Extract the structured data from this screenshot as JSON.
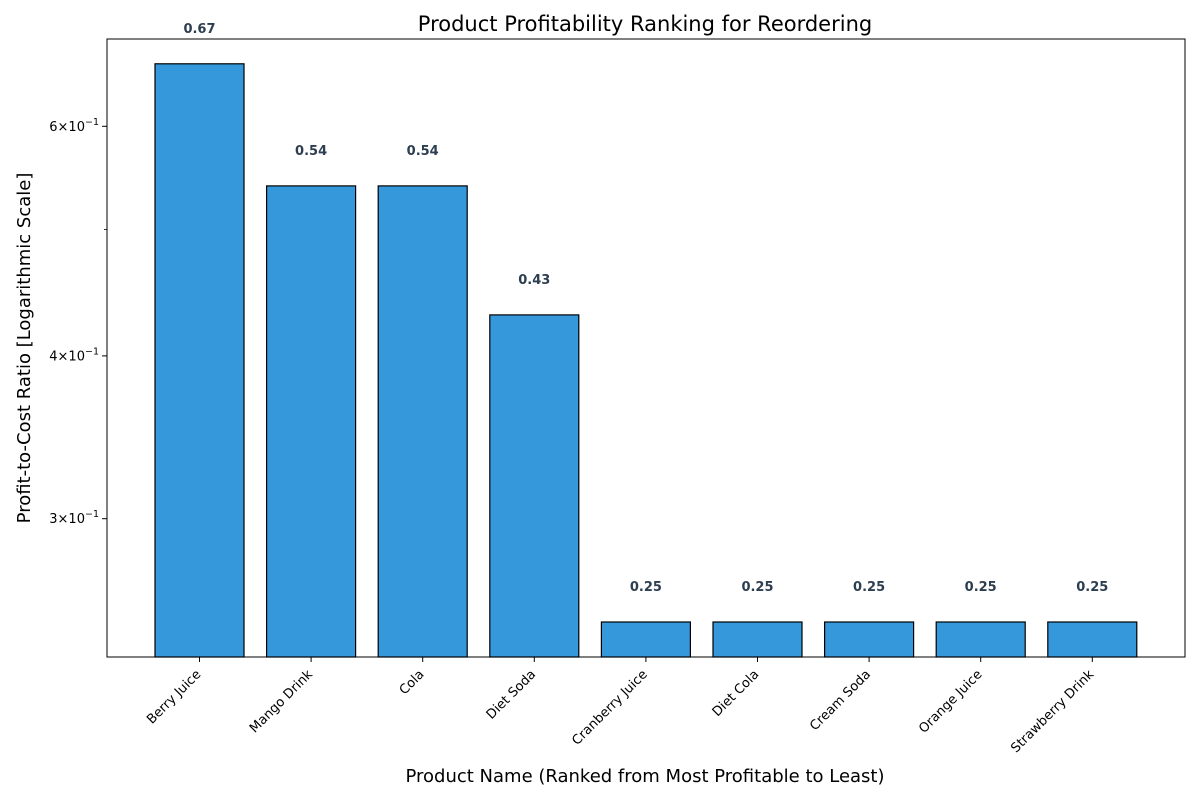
{
  "chart_data": {
    "type": "bar",
    "title": "Product Profitability Ranking for Reordering",
    "xlabel": "Product Name (Ranked from Most Profitable to Least)",
    "ylabel": "Profit-to-Cost Ratio [Logarithmic Scale]",
    "yscale": "log",
    "ylim": [
      0.235,
      0.7
    ],
    "categories": [
      "Berry Juice",
      "Mango Drink",
      "Cola",
      "Diet Soda",
      "Cranberry Juice",
      "Diet Cola",
      "Cream Soda",
      "Orange Juice",
      "Strawberry Drink"
    ],
    "values": [
      0.67,
      0.54,
      0.54,
      0.43,
      0.25,
      0.25,
      0.25,
      0.25,
      0.25
    ],
    "data_labels": [
      "0.67",
      "0.54",
      "0.54",
      "0.43",
      "0.25",
      "0.25",
      "0.25",
      "0.25",
      "0.25"
    ],
    "yticks": [
      {
        "value": 0.3,
        "mantissa": "3",
        "exponent": "−1"
      },
      {
        "value": 0.4,
        "mantissa": "4",
        "exponent": "−1"
      },
      {
        "value": 0.6,
        "mantissa": "6",
        "exponent": "−1"
      }
    ],
    "minor_yticks": [
      0.5
    ],
    "grid": false,
    "legend": "none",
    "colors": {
      "bar": "#3498db",
      "bar_edge": "#000000",
      "data_label": "#2c3e50",
      "axis": "#000000"
    }
  }
}
